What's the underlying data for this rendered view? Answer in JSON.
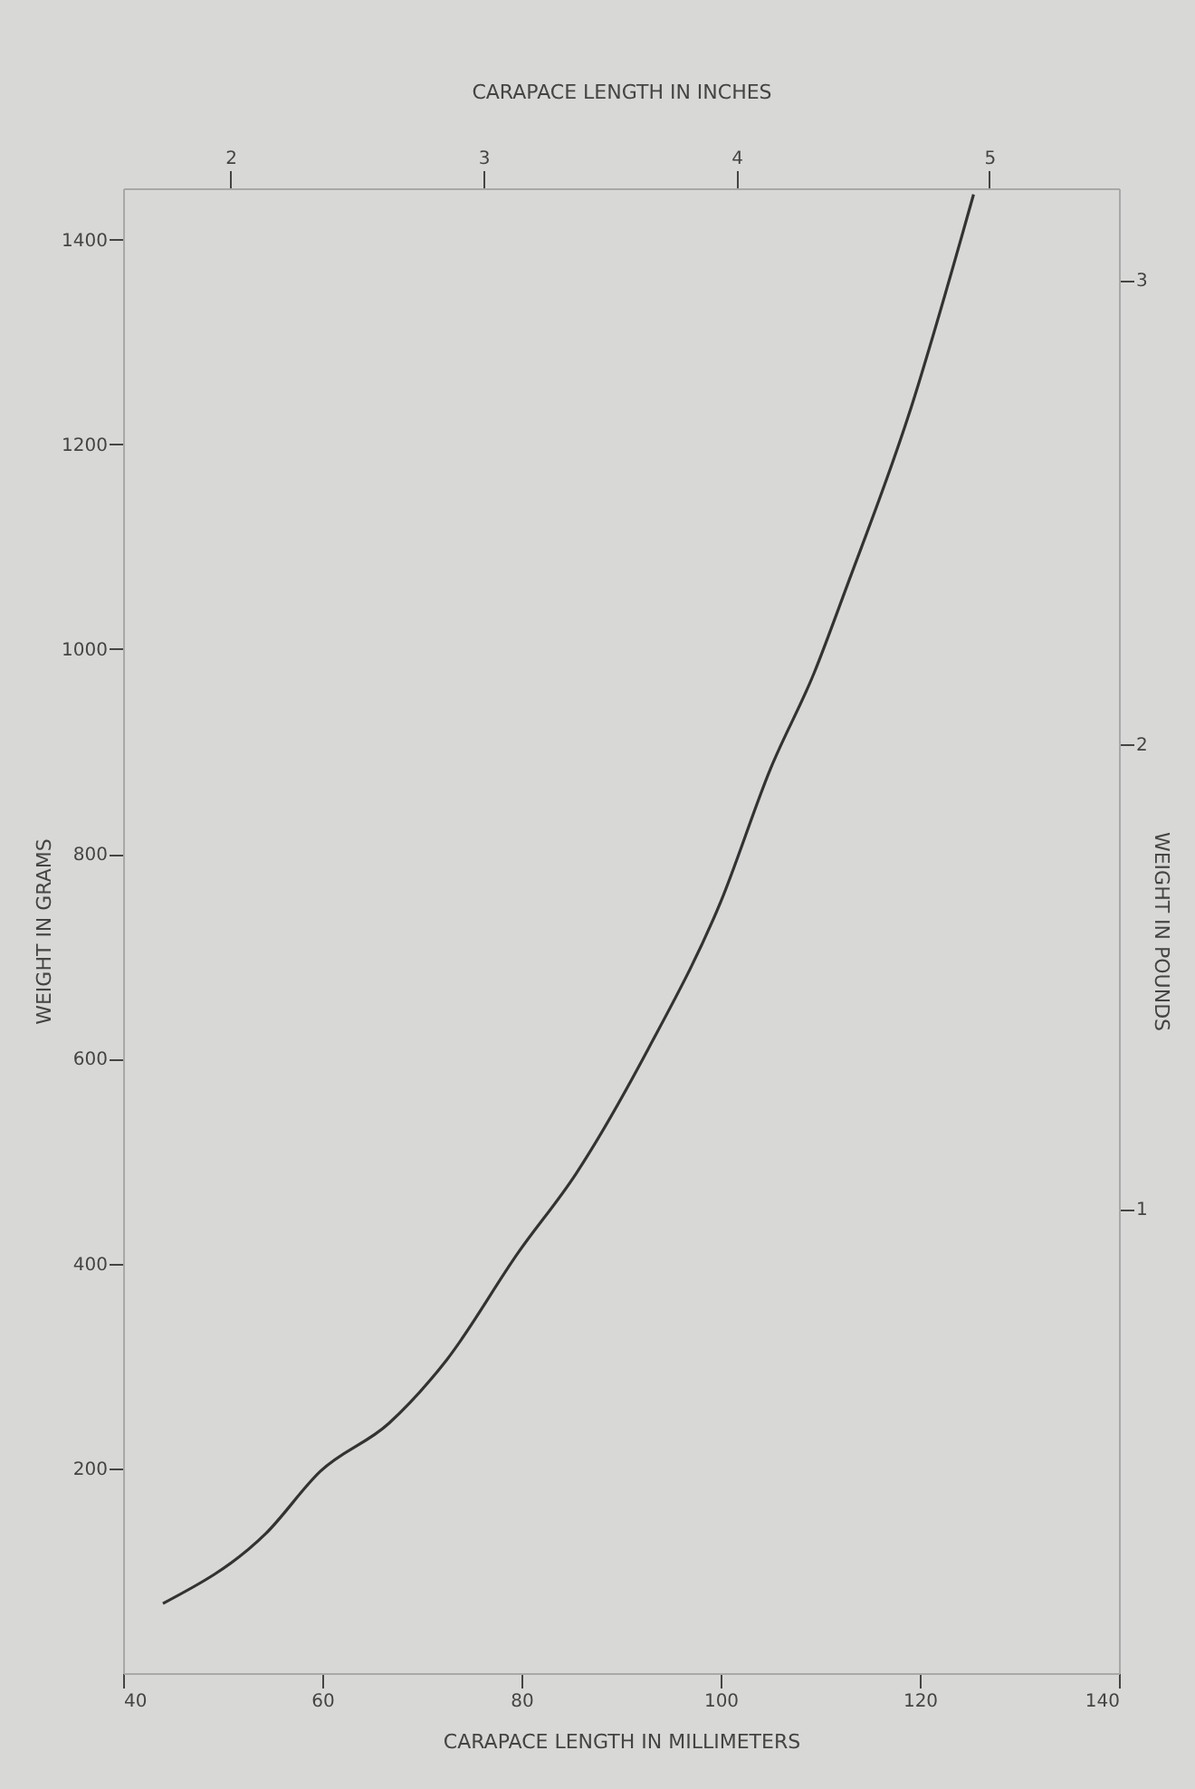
{
  "chart_data": {
    "type": "line",
    "xlabel": "CARAPACE LENGTH IN MILLIMETERS",
    "ylabel": "WEIGHT IN GRAMS",
    "x2label": "CARAPACE LENGTH IN INCHES",
    "y2label": "WEIGHT IN POUNDS",
    "xlim": [
      40,
      140
    ],
    "xticks": [
      40,
      60,
      80,
      100,
      120,
      140
    ],
    "ylim": [
      0,
      1450
    ],
    "yticks": [
      200,
      400,
      600,
      800,
      1000,
      1200,
      1400
    ],
    "x2lim": [
      1.575,
      5.512
    ],
    "x2ticks": [
      2,
      3,
      4,
      5
    ],
    "y2lim": [
      0,
      3.197
    ],
    "y2ticks": [
      1,
      2,
      3
    ],
    "grid": false,
    "marker": "none",
    "line_style": "solid",
    "series": [
      {
        "color": "#333333",
        "x": [
          44,
          54.3,
          59.8,
          66.7,
          72.5,
          79.7,
          85.5,
          92.7,
          100,
          105,
          109.4,
          112.7,
          118.8,
          125.4
        ],
        "values": [
          68,
          136,
          197,
          244,
          306,
          411,
          488,
          609,
          753,
          883,
          977,
          1062,
          1226,
          1444
        ]
      }
    ]
  }
}
